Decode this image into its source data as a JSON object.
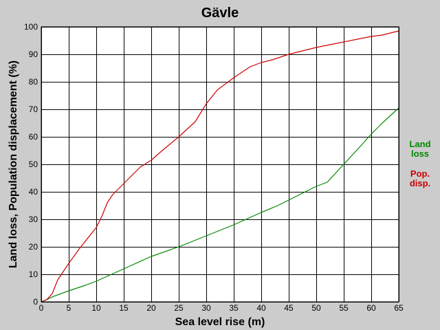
{
  "chart_data": {
    "type": "line",
    "title": "Gävle",
    "xlabel": "Sea level rise (m)",
    "ylabel": "Land loss, Population displacement (%)",
    "xlim": [
      0,
      65
    ],
    "ylim": [
      0,
      100
    ],
    "xticks": [
      0,
      5,
      10,
      15,
      20,
      25,
      30,
      35,
      40,
      45,
      50,
      55,
      60,
      65
    ],
    "yticks": [
      0,
      10,
      20,
      30,
      40,
      50,
      60,
      70,
      80,
      90,
      100
    ],
    "grid": true,
    "legend_placement": "right",
    "series": [
      {
        "name": "Land loss",
        "color": "#008800",
        "x": [
          0,
          1,
          2,
          5,
          8,
          10,
          15,
          20,
          25,
          30,
          35,
          40,
          43,
          45,
          48,
          50,
          52,
          55,
          58,
          60,
          62,
          65
        ],
        "y": [
          0,
          0.8,
          1.8,
          4,
          6,
          7.5,
          12,
          16.5,
          20,
          24,
          28,
          32.5,
          35,
          37,
          40,
          42,
          43.5,
          50,
          56.5,
          61,
          65,
          70.5
        ]
      },
      {
        "name": "Pop.\ndisp.",
        "color": "#cc0000",
        "x": [
          0,
          1,
          2,
          3,
          4,
          5,
          7,
          10,
          11,
          12,
          13,
          15,
          18,
          20,
          22,
          25,
          28,
          30,
          32,
          35,
          38,
          40,
          42,
          45,
          48,
          50,
          55,
          60,
          62,
          65
        ],
        "y": [
          0,
          0.8,
          3,
          8,
          11,
          14,
          19.5,
          27,
          31,
          36,
          39,
          43,
          49,
          51.5,
          55,
          60,
          65.5,
          72,
          77,
          81.5,
          85.5,
          87,
          88,
          90,
          91.5,
          92.5,
          94.5,
          96.5,
          97,
          98.5
        ]
      }
    ]
  }
}
